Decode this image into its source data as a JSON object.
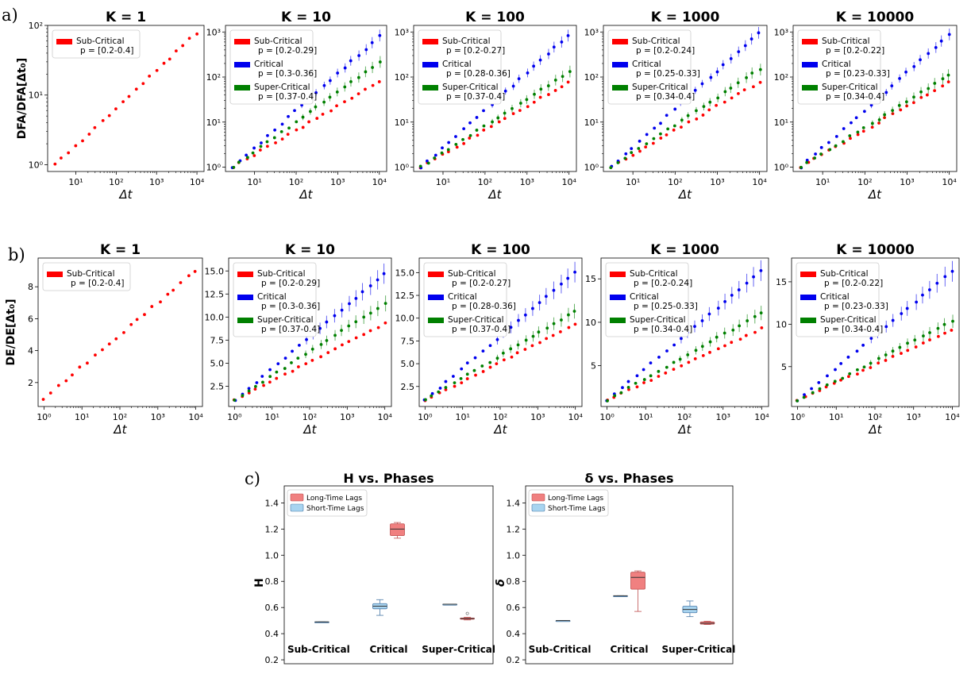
{
  "row_labels": {
    "a": "a)",
    "b": "b)",
    "c": "c)"
  },
  "colors": {
    "sub": "#ff0000",
    "crit": "#0000ee",
    "super": "#008000",
    "long_box": "#f08080",
    "short_box": "#a8d4f0",
    "long_box_edge": "#c05050",
    "short_box_edge": "#4a7aa8"
  },
  "chart_data": [
    {
      "id": "a1",
      "type": "scatter",
      "scale": "loglog",
      "title": "K = 1",
      "xlabel": "Δt",
      "ylabel": "DFA/DFA[Δt₀]",
      "xlim": [
        2,
        15000
      ],
      "ylim": [
        0.8,
        100
      ],
      "series": [
        {
          "name": "Sub-Critical",
          "p": "p = [0.2-0.4]",
          "end": 78
        }
      ]
    },
    {
      "id": "a2",
      "type": "scatter",
      "scale": "loglog",
      "title": "K = 10",
      "xlabel": "Δt",
      "ylabel": "",
      "xlim": [
        2,
        15000
      ],
      "ylim": [
        0.8,
        1400
      ],
      "series": [
        {
          "name": "Sub-Critical",
          "p": "p = [0.2-0.29]",
          "end": 78
        },
        {
          "name": "Critical",
          "p": "p = [0.3-0.36]",
          "end": 800
        },
        {
          "name": "Super-Critical",
          "p": "p = [0.37-0.4]",
          "end": 210
        }
      ]
    },
    {
      "id": "a3",
      "type": "scatter",
      "scale": "loglog",
      "title": "K = 100",
      "xlabel": "Δt",
      "ylabel": "",
      "xlim": [
        2,
        15000
      ],
      "ylim": [
        0.8,
        1400
      ],
      "series": [
        {
          "name": "Sub-Critical",
          "p": "p = [0.2-0.27]",
          "end": 78
        },
        {
          "name": "Critical",
          "p": "p = [0.28-0.36]",
          "end": 850
        },
        {
          "name": "Super-Critical",
          "p": "p = [0.37-0.4]",
          "end": 130
        }
      ]
    },
    {
      "id": "a4",
      "type": "scatter",
      "scale": "loglog",
      "title": "K = 1000",
      "xlabel": "Δt",
      "ylabel": "",
      "xlim": [
        2,
        15000
      ],
      "ylim": [
        0.8,
        1400
      ],
      "series": [
        {
          "name": "Sub-Critical",
          "p": "p = [0.2-0.24]",
          "end": 78
        },
        {
          "name": "Critical",
          "p": "p = [0.25-0.33]",
          "end": 950
        },
        {
          "name": "Super-Critical",
          "p": "p = [0.34-0.4]",
          "end": 150
        }
      ]
    },
    {
      "id": "a5",
      "type": "scatter",
      "scale": "loglog",
      "title": "K = 10000",
      "xlabel": "Δt",
      "ylabel": "",
      "xlim": [
        2,
        15000
      ],
      "ylim": [
        0.8,
        1400
      ],
      "series": [
        {
          "name": "Sub-Critical",
          "p": "p = [0.2-0.22]",
          "end": 78
        },
        {
          "name": "Critical",
          "p": "p = [0.23-0.33]",
          "end": 850
        },
        {
          "name": "Super-Critical",
          "p": "p = [0.34-0.4]",
          "end": 110
        }
      ]
    },
    {
      "id": "b1",
      "type": "scatter",
      "scale": "semilogx",
      "title": "K = 1",
      "xlabel": "Δt",
      "ylabel": "DE/DE[Δt₀]",
      "xlim": [
        0.7,
        15000
      ],
      "ylim": [
        0.5,
        9.8
      ],
      "yticks": [
        2,
        4,
        6,
        8
      ],
      "series": [
        {
          "name": "Sub-Critical",
          "p": "p = [0.2-0.4]",
          "end": 9.0
        }
      ]
    },
    {
      "id": "b2",
      "type": "scatter",
      "scale": "semilogx",
      "title": "K = 10",
      "xlabel": "Δt",
      "ylabel": "",
      "xlim": [
        0.7,
        15000
      ],
      "ylim": [
        0.3,
        16.4
      ],
      "yticks": [
        "2.5",
        "5.0",
        "7.5",
        "10.0",
        "12.5",
        "15.0"
      ],
      "series": [
        {
          "name": "Sub-Critical",
          "p": "p = [0.2-0.29]",
          "end": 9.3
        },
        {
          "name": "Critical",
          "p": "p = [0.3-0.36]",
          "end": 14.7
        },
        {
          "name": "Super-Critical",
          "p": "p = [0.37-0.4]",
          "end": 11.5
        }
      ]
    },
    {
      "id": "b3",
      "type": "scatter",
      "scale": "semilogx",
      "title": "K = 100",
      "xlabel": "Δt",
      "ylabel": "",
      "xlim": [
        0.7,
        15000
      ],
      "ylim": [
        0.3,
        16.6
      ],
      "yticks": [
        "2.5",
        "5.0",
        "7.5",
        "10.0",
        "12.5",
        "15.0"
      ],
      "series": [
        {
          "name": "Sub-Critical",
          "p": "p = [0.2-0.27]",
          "end": 9.3
        },
        {
          "name": "Critical",
          "p": "p = [0.28-0.36]",
          "end": 15.1
        },
        {
          "name": "Super-Critical",
          "p": "p = [0.37-0.4]",
          "end": 10.8
        }
      ]
    },
    {
      "id": "b4",
      "type": "scatter",
      "scale": "semilogx",
      "title": "K = 1000",
      "xlabel": "Δt",
      "ylabel": "",
      "xlim": [
        0.7,
        15000
      ],
      "ylim": [
        0.3,
        17.4
      ],
      "yticks": [
        "5",
        "10",
        "15"
      ],
      "series": [
        {
          "name": "Sub-Critical",
          "p": "p = [0.2-0.24]",
          "end": 9.3
        },
        {
          "name": "Critical",
          "p": "p = [0.25-0.33]",
          "end": 15.9
        },
        {
          "name": "Super-Critical",
          "p": "p = [0.34-0.4]",
          "end": 11.1
        }
      ]
    },
    {
      "id": "b5",
      "type": "scatter",
      "scale": "semilogx",
      "title": "K = 10000",
      "xlabel": "Δt",
      "ylabel": "",
      "xlim": [
        0.7,
        15000
      ],
      "ylim": [
        0.3,
        17.8
      ],
      "yticks": [
        "5",
        "10",
        "15"
      ],
      "series": [
        {
          "name": "Sub-Critical",
          "p": "p = [0.2-0.22]",
          "end": 9.3
        },
        {
          "name": "Critical",
          "p": "p = [0.23-0.33]",
          "end": 16.3
        },
        {
          "name": "Super-Critical",
          "p": "p = [0.34-0.4]",
          "end": 10.4
        }
      ]
    },
    {
      "id": "c1",
      "type": "box",
      "title": "H vs. Phases",
      "ylabel": "H",
      "ylim": [
        0.17,
        1.53
      ],
      "yticks": [
        "0.2",
        "0.4",
        "0.6",
        "0.8",
        "1.0",
        "1.2",
        "1.4"
      ],
      "categories": [
        "Sub-Critical",
        "Critical",
        "Super-Critical"
      ],
      "legend": [
        "Long-Time Lags",
        "Short-Time Lags"
      ],
      "boxes": [
        {
          "cat": 0,
          "kind": "short",
          "whislo": 0.49,
          "q1": 0.49,
          "med": 0.49,
          "q3": 0.49,
          "whishi": 0.49
        },
        {
          "cat": 1,
          "kind": "long",
          "whislo": 1.13,
          "q1": 1.15,
          "med": 1.2,
          "q3": 1.24,
          "whishi": 1.25
        },
        {
          "cat": 1,
          "kind": "short",
          "whislo": 0.54,
          "q1": 0.59,
          "med": 0.61,
          "q3": 0.63,
          "whishi": 0.66
        },
        {
          "cat": 2,
          "kind": "short",
          "whislo": 0.625,
          "q1": 0.625,
          "med": 0.625,
          "q3": 0.625,
          "whishi": 0.625
        },
        {
          "cat": 2,
          "kind": "long",
          "whislo": 0.505,
          "q1": 0.51,
          "med": 0.515,
          "q3": 0.52,
          "whishi": 0.525,
          "fliers": [
            0.555
          ]
        }
      ]
    },
    {
      "id": "c2",
      "type": "box",
      "title": "δ vs. Phases",
      "ylabel": "δ",
      "ylim": [
        0.17,
        1.53
      ],
      "yticks": [
        "0.2",
        "0.4",
        "0.6",
        "0.8",
        "1.0",
        "1.2",
        "1.4"
      ],
      "categories": [
        "Sub-Critical",
        "Critical",
        "Super-Critical"
      ],
      "legend": [
        "Long-Time Lags",
        "Short-Time Lags"
      ],
      "boxes": [
        {
          "cat": 0,
          "kind": "short",
          "whislo": 0.5,
          "q1": 0.5,
          "med": 0.5,
          "q3": 0.5,
          "whishi": 0.5
        },
        {
          "cat": 1,
          "kind": "short",
          "whislo": 0.69,
          "q1": 0.69,
          "med": 0.69,
          "q3": 0.69,
          "whishi": 0.69
        },
        {
          "cat": 1,
          "kind": "long",
          "whislo": 0.57,
          "q1": 0.74,
          "med": 0.83,
          "q3": 0.87,
          "whishi": 0.88
        },
        {
          "cat": 2,
          "kind": "short",
          "whislo": 0.53,
          "q1": 0.56,
          "med": 0.585,
          "q3": 0.61,
          "whishi": 0.65
        },
        {
          "cat": 2,
          "kind": "long",
          "whislo": 0.47,
          "q1": 0.473,
          "med": 0.48,
          "q3": 0.49,
          "whishi": 0.495
        }
      ]
    }
  ]
}
